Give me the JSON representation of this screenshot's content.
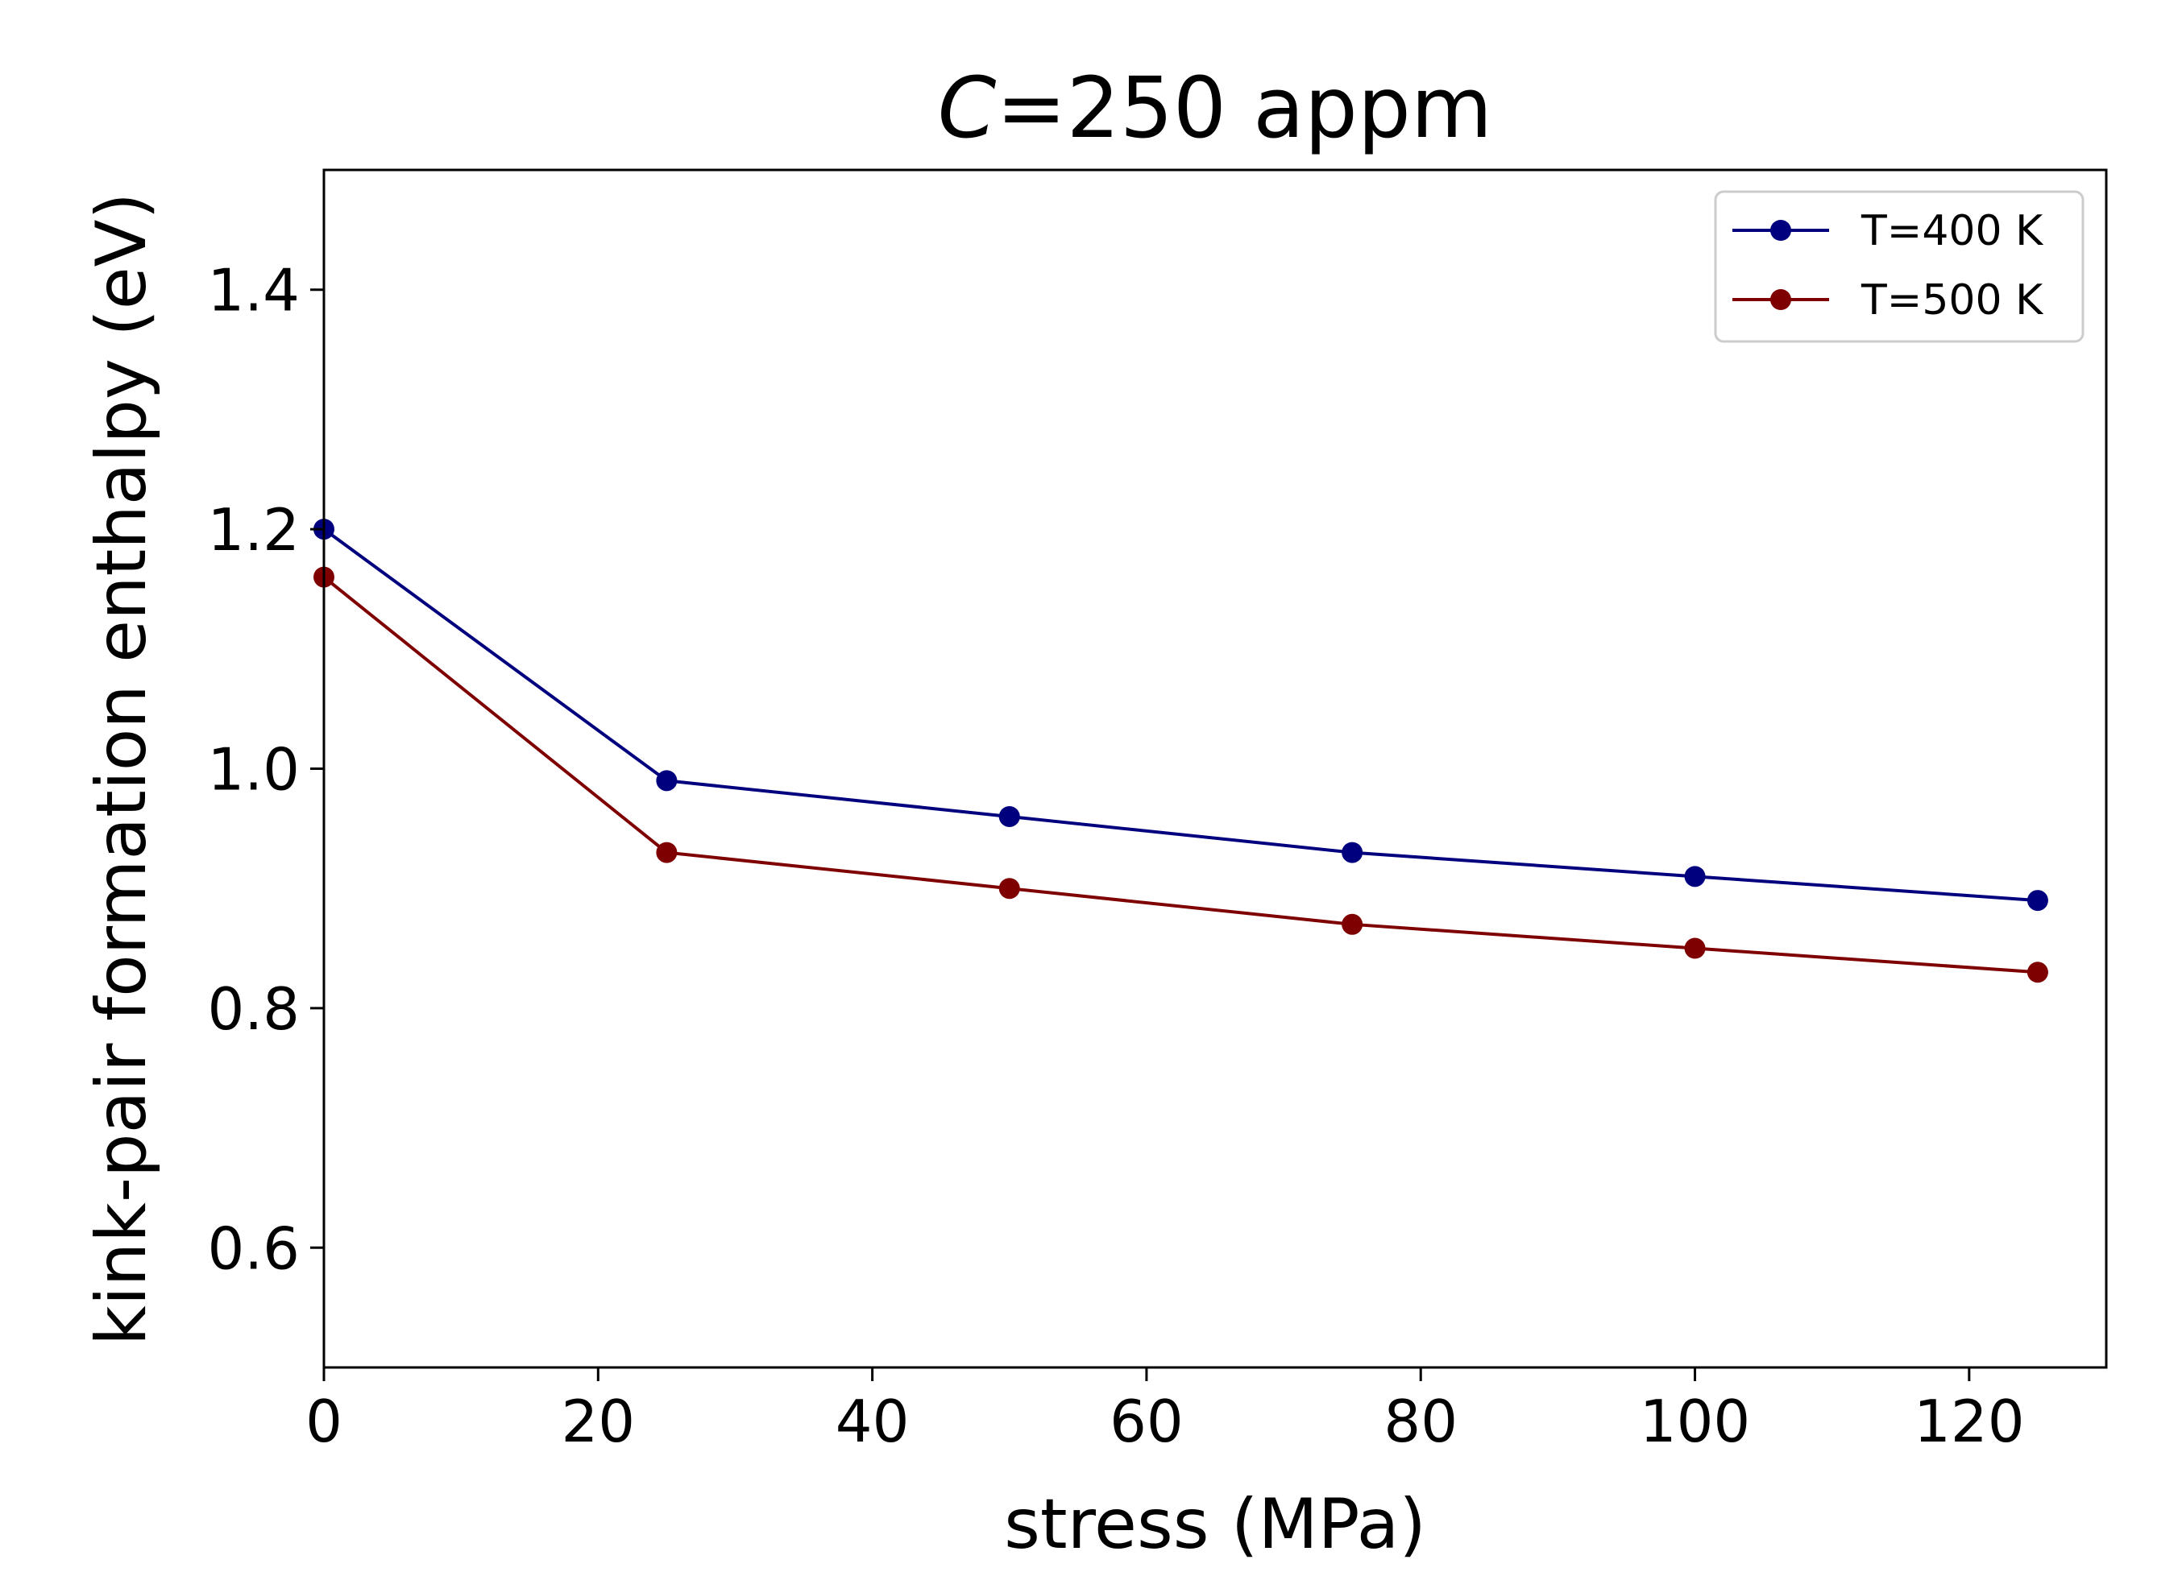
{
  "chart_data": {
    "type": "line",
    "title_var": "C",
    "title_rest": "=250 appm",
    "xlabel": "stress (MPa)",
    "ylabel": "kink-pair formation enthalpy (eV)",
    "xlim": [
      0,
      130
    ],
    "ylim": [
      0.5,
      1.5
    ],
    "xticks": [
      0,
      20,
      40,
      60,
      80,
      100,
      120
    ],
    "xtick_labels": [
      "0",
      "20",
      "40",
      "60",
      "80",
      "100",
      "120"
    ],
    "yticks": [
      0.6,
      0.8,
      1.0,
      1.2,
      1.4
    ],
    "ytick_labels": [
      "0.6",
      "0.8",
      "1.0",
      "1.2",
      "1.4"
    ],
    "legend_position": "top-right",
    "grid": false,
    "series": [
      {
        "name": "T=400 K",
        "color": "#00007f",
        "x": [
          0,
          25,
          50,
          75,
          100,
          125
        ],
        "values": [
          1.2,
          0.99,
          0.96,
          0.93,
          0.91,
          0.89
        ]
      },
      {
        "name": "T=500 K",
        "color": "#7f0000",
        "x": [
          0,
          25,
          50,
          75,
          100,
          125
        ],
        "values": [
          1.16,
          0.93,
          0.9,
          0.87,
          0.85,
          0.83
        ]
      }
    ]
  }
}
